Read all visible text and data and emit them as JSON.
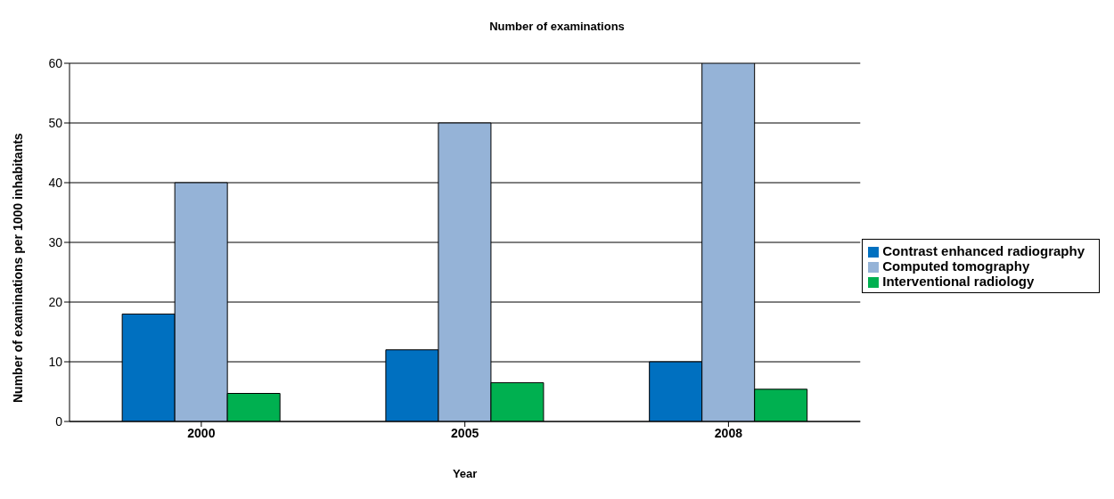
{
  "chart_data": {
    "type": "bar",
    "title": "Number of examinations",
    "xlabel": "Year",
    "ylabel": "Number of examinations per 1000 inhabitants",
    "categories": [
      "2000",
      "2005",
      "2008"
    ],
    "series": [
      {
        "name": "Contrast enhanced radiography",
        "color": "#0070c0",
        "values": [
          18,
          12,
          10
        ]
      },
      {
        "name": "Computed tomography",
        "color": "#95b3d7",
        "values": [
          40,
          50,
          60
        ]
      },
      {
        "name": "Interventional radiology",
        "color": "#00b050",
        "values": [
          4.7,
          6.5,
          5.4
        ]
      }
    ],
    "ylim": [
      0,
      60
    ],
    "yticks": [
      0,
      10,
      20,
      30,
      40,
      50,
      60
    ],
    "grid": "y",
    "legend": "right"
  }
}
